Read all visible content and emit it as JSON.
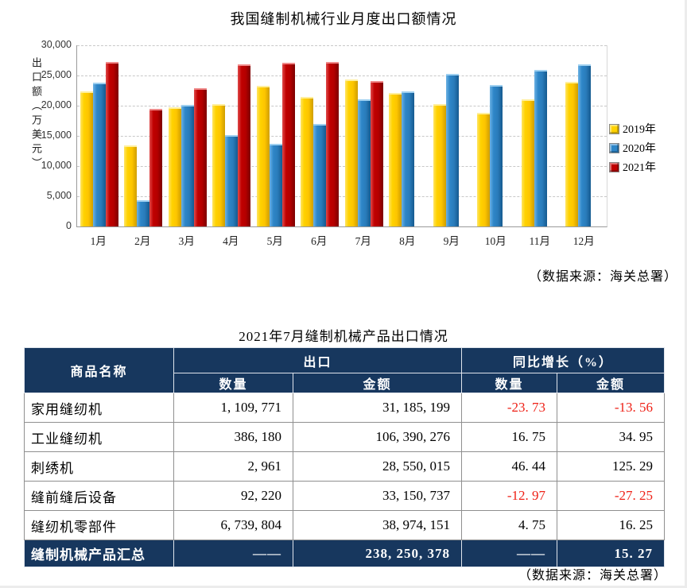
{
  "chart": {
    "title": "我国缝制机械行业月度出口额情况",
    "y_axis_label": "出口额（万美元）",
    "y_ticks": [
      "30,000",
      "25,000",
      "20,000",
      "15,000",
      "10,000",
      "5,000",
      "0"
    ],
    "source": "（数据来源：海关总署）",
    "legend": [
      {
        "label": "2019年",
        "color": "#ffd200"
      },
      {
        "label": "2020年",
        "color": "#2e86c8"
      },
      {
        "label": "2021年",
        "color": "#c00000"
      }
    ]
  },
  "chart_data": {
    "type": "bar",
    "title": "我国缝制机械行业月度出口额情况",
    "xlabel": "",
    "ylabel": "出口额（万美元）",
    "ylim": [
      0,
      30000
    ],
    "ytick_step": 5000,
    "grid": true,
    "legend_position": "right",
    "categories": [
      "1月",
      "2月",
      "3月",
      "4月",
      "5月",
      "6月",
      "7月",
      "8月",
      "9月",
      "10月",
      "11月",
      "12月"
    ],
    "series": [
      {
        "name": "2019年",
        "color": "#ffd200",
        "values": [
          22400,
          13400,
          19700,
          20300,
          23300,
          21500,
          24400,
          22100,
          20200,
          18800,
          21000,
          24000
        ]
      },
      {
        "name": "2020年",
        "color": "#2e86c8",
        "values": [
          23800,
          4300,
          20100,
          15100,
          13700,
          17000,
          21000,
          22400,
          25200,
          23400,
          25900,
          26900
        ]
      },
      {
        "name": "2021年",
        "color": "#c00000",
        "values": [
          27300,
          19500,
          22900,
          26900,
          27100,
          27300,
          24100,
          null,
          null,
          null,
          null,
          null
        ]
      }
    ],
    "source_note": "（数据来源：海关总署）"
  },
  "table": {
    "title": "2021年7月缝制机械产品出口情况",
    "source": "（数据来源：海关总署）",
    "header": {
      "product": "商品名称",
      "group_export": "出口",
      "group_yoy": "同比增长（%）",
      "qty": "数量",
      "amount": "金额",
      "yoy_qty": "数量",
      "yoy_amount": "金额"
    },
    "rows": [
      {
        "name": "家用缝纫机",
        "qty": "1, 109, 771",
        "amount": "31, 185, 199",
        "yoy_qty": "-23. 73",
        "yoy_amount": "-13. 56"
      },
      {
        "name": "工业缝纫机",
        "qty": "386, 180",
        "amount": "106, 390, 276",
        "yoy_qty": "16. 75",
        "yoy_amount": "34. 95"
      },
      {
        "name": "刺绣机",
        "qty": "2, 961",
        "amount": "28, 550, 015",
        "yoy_qty": "46. 44",
        "yoy_amount": "125. 29"
      },
      {
        "name": "缝前缝后设备",
        "qty": "92, 220",
        "amount": "33, 150, 737",
        "yoy_qty": "-12. 97",
        "yoy_amount": "-27. 25"
      },
      {
        "name": "缝纫机零部件",
        "qty": "6, 739, 804",
        "amount": "38, 974, 151",
        "yoy_qty": "4. 75",
        "yoy_amount": "16. 25"
      }
    ],
    "summary": {
      "name": "缝制机械产品汇总",
      "qty": "——",
      "amount": "238, 250, 378",
      "yoy_qty": "——",
      "yoy_amount": "15. 27"
    }
  },
  "colors": {
    "header_bg": "#17375e",
    "negative_text": "#ee2117",
    "gridline": "#c8c8c8"
  }
}
